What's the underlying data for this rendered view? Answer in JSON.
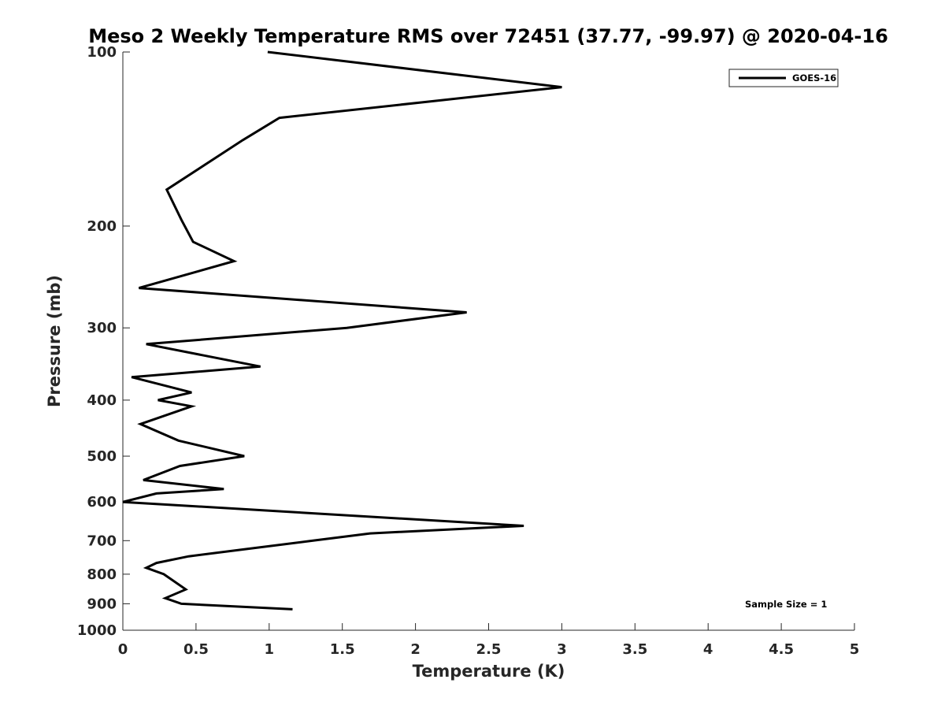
{
  "chart_data": {
    "type": "line",
    "title": "Meso 2 Weekly Temperature RMS over 72451 (37.77, -99.97) @ 2020-04-16",
    "xlabel": "Temperature (K)",
    "ylabel": "Pressure (mb)",
    "xlim": [
      0,
      5
    ],
    "ylim": [
      100,
      1000
    ],
    "y_scale": "log",
    "y_reversed": true,
    "grid": false,
    "x_ticks": [
      0,
      0.5,
      1,
      1.5,
      2,
      2.5,
      3,
      3.5,
      4,
      4.5,
      5
    ],
    "x_tick_labels": [
      "0",
      "0.5",
      "1",
      "1.5",
      "2",
      "2.5",
      "3",
      "3.5",
      "4",
      "4.5",
      "5"
    ],
    "y_ticks": [
      100,
      200,
      300,
      400,
      500,
      600,
      700,
      800,
      900,
      1000
    ],
    "y_tick_labels": [
      "100",
      "200",
      "300",
      "400",
      "500",
      "600",
      "700",
      "800",
      "900",
      "1000"
    ],
    "legend": {
      "placement": "top-right",
      "entries": [
        "GOES-16"
      ]
    },
    "annotation": "Sample Size = 1",
    "series": [
      {
        "name": "GOES-16",
        "color": "#000000",
        "points": [
          [
            0.99,
            100
          ],
          [
            3.0,
            115
          ],
          [
            1.07,
            130
          ],
          [
            0.82,
            142
          ],
          [
            0.3,
            173
          ],
          [
            0.4,
            195
          ],
          [
            0.48,
            213
          ],
          [
            0.76,
            230
          ],
          [
            0.11,
            256
          ],
          [
            2.35,
            282
          ],
          [
            1.53,
            300
          ],
          [
            0.16,
            320
          ],
          [
            0.94,
            350
          ],
          [
            0.06,
            365
          ],
          [
            0.47,
            388
          ],
          [
            0.24,
            400
          ],
          [
            0.47,
            410
          ],
          [
            0.12,
            440
          ],
          [
            0.38,
            470
          ],
          [
            0.83,
            500
          ],
          [
            0.39,
            520
          ],
          [
            0.14,
            550
          ],
          [
            0.69,
            570
          ],
          [
            0.23,
            580
          ],
          [
            0.0,
            600
          ],
          [
            2.74,
            660
          ],
          [
            1.69,
            680
          ],
          [
            1.3,
            700
          ],
          [
            0.82,
            725
          ],
          [
            0.45,
            745
          ],
          [
            0.23,
            765
          ],
          [
            0.16,
            780
          ],
          [
            0.28,
            800
          ],
          [
            0.43,
            850
          ],
          [
            0.29,
            880
          ],
          [
            0.4,
            900
          ],
          [
            1.16,
            920
          ]
        ]
      }
    ]
  }
}
